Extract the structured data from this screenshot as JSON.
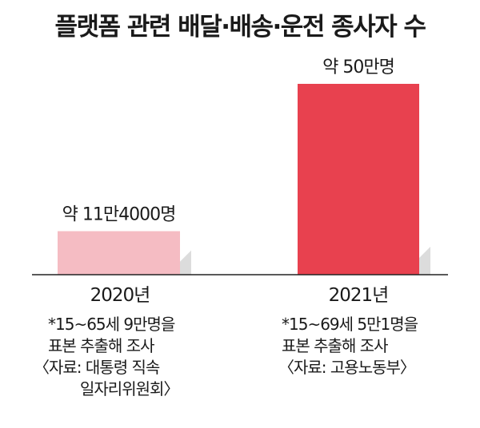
{
  "title": "플랫폼 관련 배달·배송·운전 종사자 수",
  "chart_data": {
    "type": "bar",
    "title": "플랫폼 관련 배달·배송·운전 종사자 수",
    "categories": [
      "2020년",
      "2021년"
    ],
    "values": [
      11.4,
      50
    ],
    "unit": "만명",
    "data_labels": [
      "약 11만4000명",
      "약 50만명"
    ],
    "colors": [
      "#f5bcc3",
      "#e8414f"
    ],
    "shadow_color": "#dcdcdc",
    "grid": false,
    "xlabel": "",
    "ylabel": ""
  },
  "notes": [
    {
      "survey": "*15~65세 9만명을",
      "method": "표본 추출해 조사",
      "source": [
        "〈자료: 대통령 직속",
        "일자리위원회〉"
      ]
    },
    {
      "survey": "*15~69세 5만1명을",
      "method": "표본 추출해 조사",
      "source": [
        "〈자료: 고용노동부〉"
      ]
    }
  ]
}
